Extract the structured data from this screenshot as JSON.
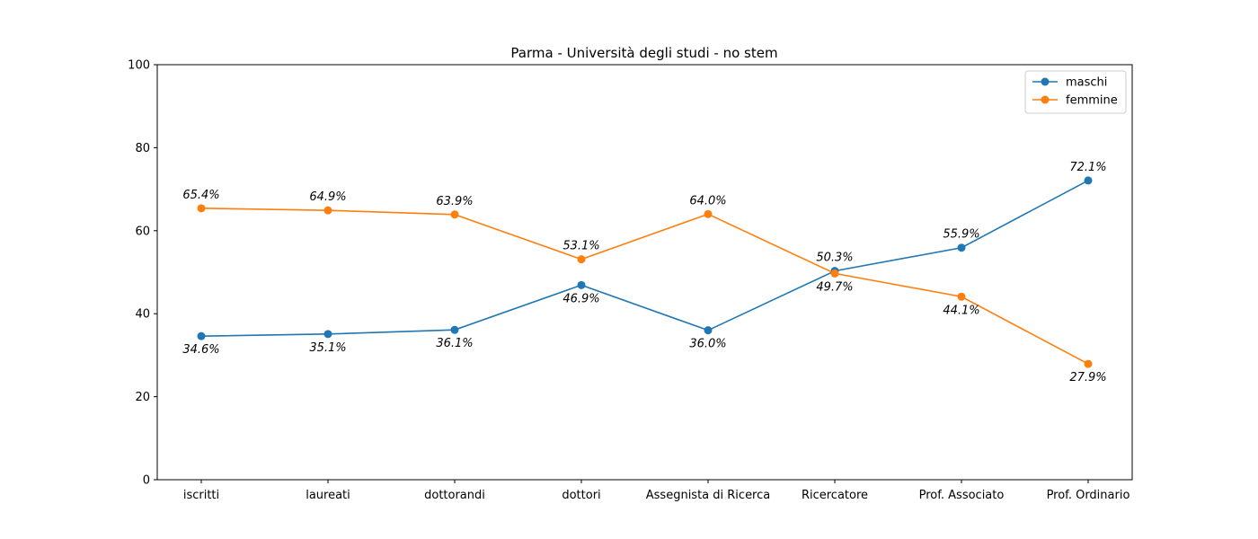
{
  "chart_data": {
    "type": "line",
    "title": "Parma - Università degli studi - no stem",
    "xlabel": "",
    "ylabel": "",
    "categories": [
      "iscritti",
      "laureati",
      "dottorandi",
      "dottori",
      "Assegnista di Ricerca",
      "Ricercatore",
      "Prof. Associato",
      "Prof. Ordinario"
    ],
    "ylim": [
      0,
      100
    ],
    "yticks": [
      0,
      20,
      40,
      60,
      80,
      100
    ],
    "grid": false,
    "legend_position": "upper right",
    "series": [
      {
        "name": "maschi",
        "color": "#1f77b4",
        "values": [
          34.6,
          35.1,
          36.1,
          46.9,
          36.0,
          50.3,
          55.9,
          72.1
        ],
        "labels": [
          "34.6%",
          "35.1%",
          "36.1%",
          "46.9%",
          "36.0%",
          "50.3%",
          "55.9%",
          "72.1%"
        ]
      },
      {
        "name": "femmine",
        "color": "#ff7f0e",
        "values": [
          65.4,
          64.9,
          63.9,
          53.1,
          64.0,
          49.7,
          44.1,
          27.9
        ],
        "labels": [
          "65.4%",
          "64.9%",
          "63.9%",
          "53.1%",
          "64.0%",
          "49.7%",
          "44.1%",
          "27.9%"
        ]
      }
    ]
  }
}
